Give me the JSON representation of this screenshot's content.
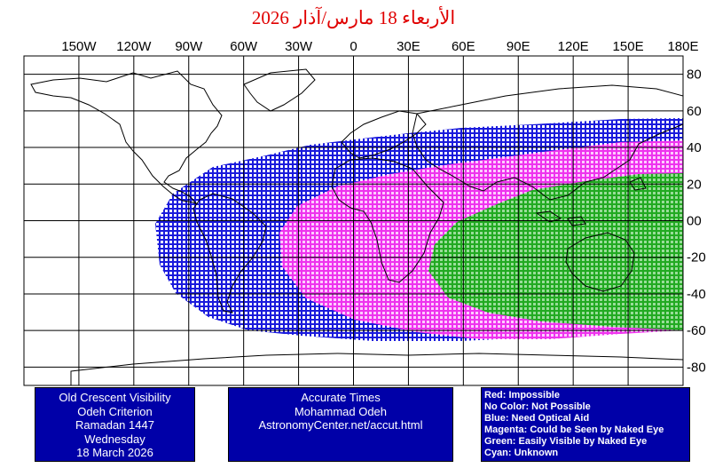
{
  "title": "الأربعاء 18 مارس/آذار 2026",
  "lon_labels": [
    "150W",
    "120W",
    "90W",
    "60W",
    "30W",
    "0",
    "30E",
    "60E",
    "90E",
    "120E",
    "150E",
    "180E"
  ],
  "lat_labels": [
    "80",
    "60",
    "40",
    "20",
    "00",
    "-20",
    "-40",
    "-60",
    "-80"
  ],
  "colors": {
    "blue": "#1a1adc",
    "magenta": "#ee33ee",
    "green": "#22aa22",
    "coast": "#000000",
    "box_bg": "#0000a8"
  },
  "info_left": {
    "lines": [
      "Old Crescent Visibility",
      "Odeh Criterion",
      "Ramadan 1447",
      "Wednesday",
      "18 March 2026"
    ]
  },
  "info_center": {
    "lines": [
      "Accurate Times",
      "Mohammad Odeh",
      "AstronomyCenter.net/accut.html"
    ]
  },
  "legend": {
    "lines": [
      "Red: Impossible",
      "No Color: Not Possible",
      "Blue: Need Optical Aid",
      "Magenta: Could be Seen by Naked Eye",
      "Green: Easily Visible by Naked Eye",
      "Cyan: Unknown"
    ]
  }
}
